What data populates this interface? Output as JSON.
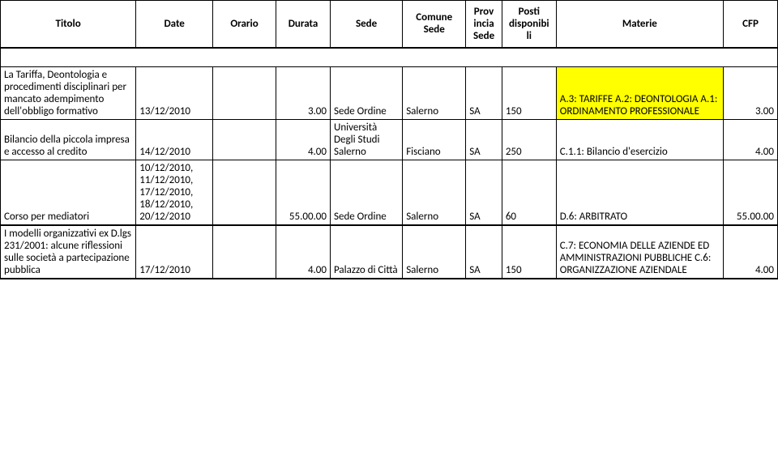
{
  "headers": {
    "titolo": "Titolo",
    "date": "Date",
    "orario": "Orario",
    "durata": "Durata",
    "sede": "Sede",
    "comune": "Comune Sede",
    "prov": "Prov incia Sede",
    "posti": "Posti disponibi li",
    "materie": "Materie",
    "cfp": "CFP"
  },
  "rows": [
    {
      "titolo": "La Tariffa, Deontologia e procedimenti disciplinari per mancato adempimento dell'obbligo formativo",
      "date": "13/12/2010",
      "orario": "",
      "durata": "3.00",
      "sede": "Sede Ordine",
      "comune": "Salerno",
      "prov": "SA",
      "posti": "150",
      "materie": "A.3: TARIFFE A.2: DEONTOLOGIA A.1: ORDINAMENTO PROFESSIONALE",
      "cfp": "3.00",
      "highlight_materie": true
    },
    {
      "titolo": "Bilancio della piccola impresa e accesso al credito",
      "date": "14/12/2010",
      "orario": "",
      "durata": "4.00",
      "sede": "Università Degli Studi Salerno",
      "comune": "Fisciano",
      "prov": "SA",
      "posti": "250",
      "materie": "C.1.1: Bilancio d'esercizio",
      "cfp": "4.00",
      "highlight_materie": false
    },
    {
      "titolo": "Corso per mediatori",
      "date": "10/12/2010, 11/12/2010, 17/12/2010, 18/12/2010, 20/12/2010",
      "orario": "",
      "durata": "55.00.00",
      "sede": "Sede Ordine",
      "comune": "Salerno",
      "prov": "SA",
      "posti": "60",
      "materie": "D.6: ARBITRATO",
      "cfp": "55.00.00",
      "highlight_materie": false,
      "thick_bottom": true
    },
    {
      "titolo": "I modelli organizzativi ex D.lgs 231/2001: alcune riflessioni sulle società a partecipazione pubblica",
      "date": "17/12/2010",
      "orario": "",
      "durata": "4.00",
      "sede": "Palazzo di Città",
      "comune": "Salerno",
      "prov": "SA",
      "posti": "150",
      "materie": "C.7: ECONOMIA DELLE AZIENDE ED AMMINISTRAZIONI PUBBLICHE C.6: ORGANIZZAZIONE AZIENDALE",
      "cfp": "4.00",
      "highlight_materie": false,
      "thick_bottom": true
    }
  ],
  "style": {
    "highlight_color": "#ffff00",
    "border_color": "#000000",
    "font_size": 13,
    "header_font_weight": "bold"
  }
}
